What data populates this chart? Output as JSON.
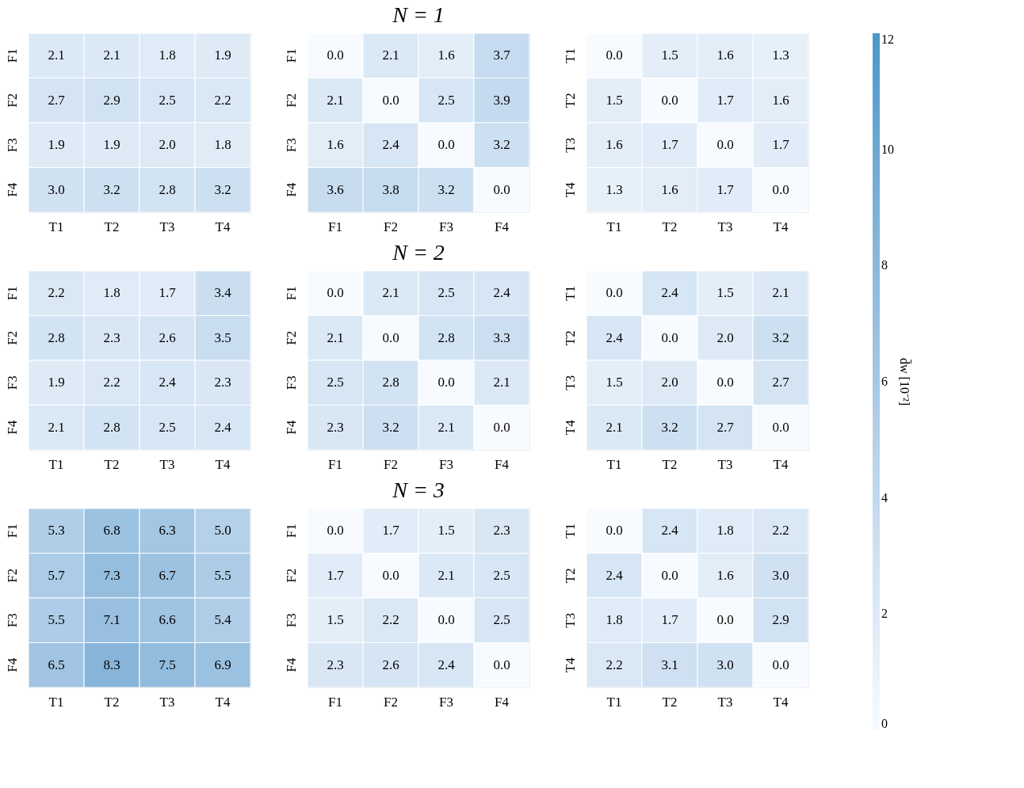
{
  "chart_data": [
    {
      "type": "heatmap",
      "categories": [
        "T1",
        "T2",
        "T3",
        "T4"
      ],
      "y_categories": [
        "F1",
        "F2",
        "F3",
        "F4"
      ],
      "cells": [
        [
          2.1,
          2.1,
          1.8,
          1.9
        ],
        [
          2.7,
          2.9,
          2.5,
          2.2
        ],
        [
          1.9,
          1.9,
          2.0,
          1.8
        ],
        [
          3.0,
          3.2,
          2.8,
          3.2
        ]
      ],
      "cell_labels": [
        [
          "2.1",
          "2.1",
          "1.8",
          "1.9"
        ],
        [
          "2.7",
          "2.9",
          "2.5",
          "2.2"
        ],
        [
          "1.9",
          "1.9",
          "2.0",
          "1.8"
        ],
        [
          "3.0",
          "3.2",
          "2.8",
          "3.2"
        ]
      ],
      "clim": [
        0,
        12
      ],
      "cticks": [
        0,
        2,
        4,
        6,
        8,
        10,
        12
      ],
      "clabel": "d̄w [10⁻²]"
    },
    {
      "type": "heatmap",
      "title": "N = 1",
      "categories": [
        "F1",
        "F2",
        "F3",
        "F4"
      ],
      "y_categories": [
        "F1",
        "F2",
        "F3",
        "F4"
      ],
      "cells": [
        [
          0.0,
          2.1,
          1.6,
          3.7
        ],
        [
          2.1,
          0.0,
          2.5,
          3.9
        ],
        [
          1.6,
          2.4,
          0.0,
          3.2
        ],
        [
          3.6,
          3.8,
          3.2,
          0.0
        ]
      ],
      "cell_labels": [
        [
          "0.0",
          "2.1",
          "1.6",
          "3.7"
        ],
        [
          "2.1",
          "0.0",
          "2.5",
          "3.9"
        ],
        [
          "1.6",
          "2.4",
          "0.0",
          "3.2"
        ],
        [
          "3.6",
          "3.8",
          "3.2",
          "0.0"
        ]
      ]
    },
    {
      "type": "heatmap",
      "categories": [
        "T1",
        "T2",
        "T3",
        "T4"
      ],
      "y_categories": [
        "T1",
        "T2",
        "T3",
        "T4"
      ],
      "cells": [
        [
          0.0,
          1.5,
          1.6,
          1.3
        ],
        [
          1.5,
          0.0,
          1.7,
          1.6
        ],
        [
          1.6,
          1.7,
          0.0,
          1.7
        ],
        [
          1.3,
          1.6,
          1.7,
          0.0
        ]
      ],
      "cell_labels": [
        [
          "0.0",
          "1.5",
          "1.6",
          "1.3"
        ],
        [
          "1.5",
          "0.0",
          "1.7",
          "1.6"
        ],
        [
          "1.6",
          "1.7",
          "0.0",
          "1.7"
        ],
        [
          "1.3",
          "1.6",
          "1.7",
          "0.0"
        ]
      ]
    },
    {
      "type": "heatmap",
      "categories": [
        "T1",
        "T2",
        "T3",
        "T4"
      ],
      "y_categories": [
        "F1",
        "F2",
        "F3",
        "F4"
      ],
      "cells": [
        [
          2.2,
          1.8,
          1.7,
          3.4
        ],
        [
          2.8,
          2.3,
          2.6,
          3.5
        ],
        [
          1.9,
          2.2,
          2.4,
          2.3
        ],
        [
          2.1,
          2.8,
          2.5,
          2.4
        ]
      ],
      "cell_labels": [
        [
          "2.2",
          "1.8",
          "1.7",
          "3.4"
        ],
        [
          "2.8",
          "2.3",
          "2.6",
          "3.5"
        ],
        [
          "1.9",
          "2.2",
          "2.4",
          "2.3"
        ],
        [
          "2.1",
          "2.8",
          "2.5",
          "2.4"
        ]
      ]
    },
    {
      "type": "heatmap",
      "title": "N = 2",
      "categories": [
        "F1",
        "F2",
        "F3",
        "F4"
      ],
      "y_categories": [
        "F1",
        "F2",
        "F3",
        "F4"
      ],
      "cells": [
        [
          0.0,
          2.1,
          2.5,
          2.4
        ],
        [
          2.1,
          0.0,
          2.8,
          3.3
        ],
        [
          2.5,
          2.8,
          0.0,
          2.1
        ],
        [
          2.3,
          3.2,
          2.1,
          0.0
        ]
      ],
      "cell_labels": [
        [
          "0.0",
          "2.1",
          "2.5",
          "2.4"
        ],
        [
          "2.1",
          "0.0",
          "2.8",
          "3.3"
        ],
        [
          "2.5",
          "2.8",
          "0.0",
          "2.1"
        ],
        [
          "2.3",
          "3.2",
          "2.1",
          "0.0"
        ]
      ]
    },
    {
      "type": "heatmap",
      "categories": [
        "T1",
        "T2",
        "T3",
        "T4"
      ],
      "y_categories": [
        "T1",
        "T2",
        "T3",
        "T4"
      ],
      "cells": [
        [
          0.0,
          2.4,
          1.5,
          2.1
        ],
        [
          2.4,
          0.0,
          2.0,
          3.2
        ],
        [
          1.5,
          2.0,
          0.0,
          2.7
        ],
        [
          2.1,
          3.2,
          2.7,
          0.0
        ]
      ],
      "cell_labels": [
        [
          "0.0",
          "2.4",
          "1.5",
          "2.1"
        ],
        [
          "2.4",
          "0.0",
          "2.0",
          "3.2"
        ],
        [
          "1.5",
          "2.0",
          "0.0",
          "2.7"
        ],
        [
          "2.1",
          "3.2",
          "2.7",
          "0.0"
        ]
      ]
    },
    {
      "type": "heatmap",
      "categories": [
        "T1",
        "T2",
        "T3",
        "T4"
      ],
      "y_categories": [
        "F1",
        "F2",
        "F3",
        "F4"
      ],
      "cells": [
        [
          5.3,
          6.8,
          6.3,
          5.0
        ],
        [
          5.7,
          7.3,
          6.7,
          5.5
        ],
        [
          5.5,
          7.1,
          6.6,
          5.4
        ],
        [
          6.5,
          8.3,
          7.5,
          6.9
        ]
      ],
      "cell_labels": [
        [
          "5.3",
          "6.8",
          "6.3",
          "5.0"
        ],
        [
          "5.7",
          "7.3",
          "6.7",
          "5.5"
        ],
        [
          "5.5",
          "7.1",
          "6.6",
          "5.4"
        ],
        [
          "6.5",
          "8.3",
          "7.5",
          "6.9"
        ]
      ]
    },
    {
      "type": "heatmap",
      "title": "N = 3",
      "categories": [
        "F1",
        "F2",
        "F3",
        "F4"
      ],
      "y_categories": [
        "F1",
        "F2",
        "F3",
        "F4"
      ],
      "cells": [
        [
          0.0,
          1.7,
          1.5,
          2.3
        ],
        [
          1.7,
          0.0,
          2.1,
          2.5
        ],
        [
          1.5,
          2.2,
          0.0,
          2.5
        ],
        [
          2.3,
          2.6,
          2.4,
          0.0
        ]
      ],
      "cell_labels": [
        [
          "0.0",
          "1.7",
          "1.5",
          "2.3"
        ],
        [
          "1.7",
          "0.0",
          "2.1",
          "2.5"
        ],
        [
          "1.5",
          "2.2",
          "0.0",
          "2.5"
        ],
        [
          "2.3",
          "2.6",
          "2.4",
          "0.0"
        ]
      ]
    },
    {
      "type": "heatmap",
      "categories": [
        "T1",
        "T2",
        "T3",
        "T4"
      ],
      "y_categories": [
        "T1",
        "T2",
        "T3",
        "T4"
      ],
      "cells": [
        [
          0.0,
          2.4,
          1.8,
          2.2
        ],
        [
          2.4,
          0.0,
          1.6,
          3.0
        ],
        [
          1.8,
          1.7,
          0.0,
          2.9
        ],
        [
          2.2,
          3.1,
          3.0,
          0.0
        ]
      ],
      "cell_labels": [
        [
          "0.0",
          "2.4",
          "1.8",
          "2.2"
        ],
        [
          "2.4",
          "0.0",
          "1.6",
          "3.0"
        ],
        [
          "1.8",
          "1.7",
          "0.0",
          "2.9"
        ],
        [
          "2.2",
          "3.1",
          "3.0",
          "0.0"
        ]
      ]
    }
  ]
}
